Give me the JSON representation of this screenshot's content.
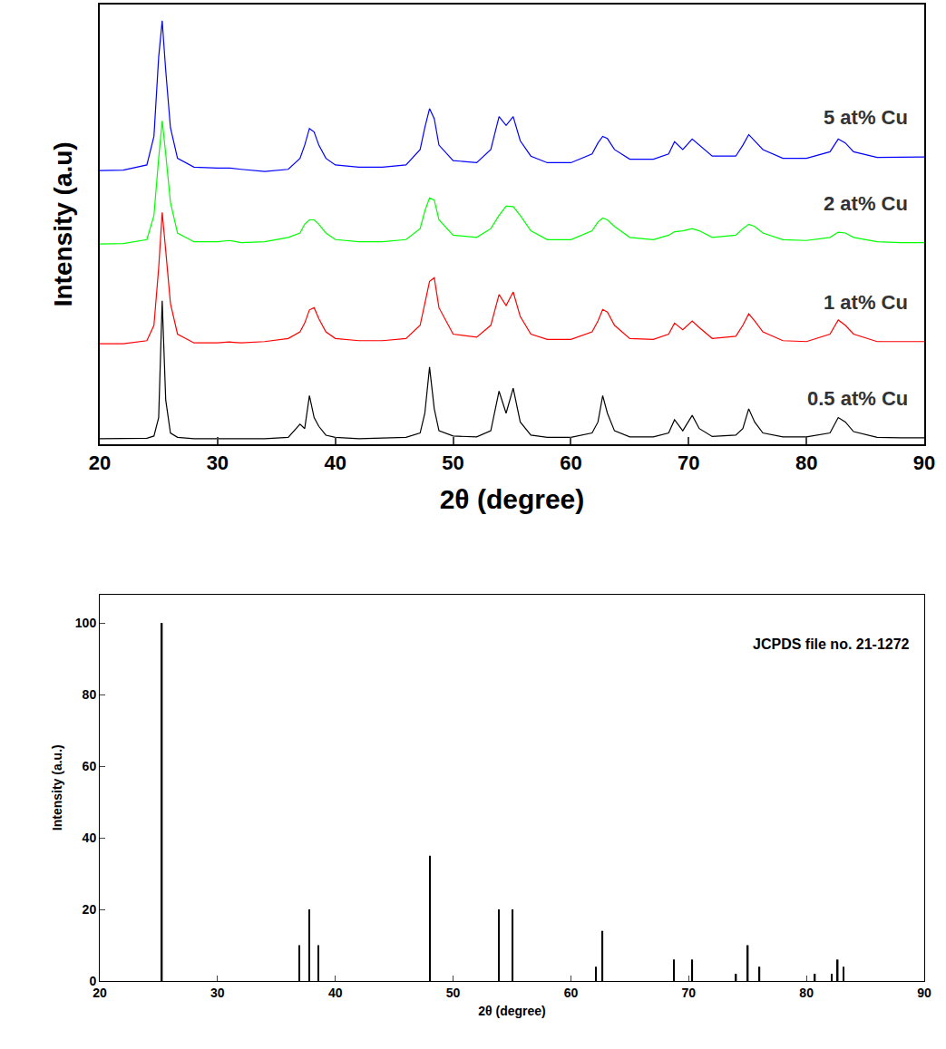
{
  "chart_data": [
    {
      "type": "line",
      "x_label": "2θ (degree)",
      "y_label": "Intensity (a.u)",
      "x": [
        20,
        22,
        24,
        24.6,
        25.0,
        25.3,
        25.6,
        26.0,
        26.6,
        28,
        30,
        31,
        32,
        34,
        36,
        37.0,
        37.4,
        37.8,
        38.2,
        38.6,
        39.2,
        40,
        42,
        44,
        46,
        47.2,
        47.6,
        48.0,
        48.4,
        48.8,
        50,
        52,
        53.2,
        53.9,
        54.5,
        55.1,
        55.7,
        56.6,
        58,
        60,
        61.8,
        62.3,
        62.7,
        63.1,
        63.7,
        65,
        67,
        68.3,
        68.8,
        69.5,
        70.3,
        70.9,
        72,
        74,
        74.6,
        75.1,
        75.6,
        76.3,
        78,
        80,
        82.0,
        82.7,
        83.3,
        84,
        86,
        88,
        90
      ],
      "series": [
        {
          "name": "0.5 at% Cu",
          "color": "#000000",
          "values": [
            1.2,
            1.2,
            1.3,
            1.8,
            6,
            32.6,
            10,
            2.5,
            1.5,
            1.2,
            1.2,
            1.3,
            1.2,
            1.2,
            1.5,
            4.5,
            3.5,
            11,
            6,
            4,
            2,
            1.5,
            1.2,
            1.3,
            1.5,
            2.5,
            7,
            17.5,
            8,
            3,
            1.8,
            1.6,
            3,
            12,
            7,
            12.7,
            5,
            2,
            1.5,
            1.5,
            2.5,
            5,
            11,
            7,
            3,
            1.6,
            1.6,
            2.5,
            5.5,
            3,
            6.5,
            3.5,
            1.7,
            2,
            3.5,
            8,
            5,
            2.5,
            1.6,
            1.6,
            2.5,
            6,
            5,
            2.8,
            1.5,
            1.4,
            1.4
          ]
        },
        {
          "name": "1 at% Cu",
          "color": "#ff0000",
          "values": [
            22.8,
            22.8,
            23.5,
            27,
            40,
            52.7,
            44,
            32,
            25,
            23,
            23,
            23.2,
            23,
            23.3,
            24,
            25.5,
            27.5,
            30.5,
            31,
            28.5,
            25.5,
            24,
            23.5,
            23.5,
            24,
            27,
            32,
            37,
            37.8,
            31,
            25,
            24.3,
            27,
            34,
            31.5,
            34.6,
            29,
            25,
            23.8,
            23.8,
            25.5,
            28,
            30.6,
            30,
            27,
            24,
            23.8,
            25,
            27.5,
            26,
            28,
            26.5,
            24,
            24.5,
            27,
            29.6,
            28,
            25.5,
            23.5,
            23.3,
            25,
            28.2,
            27,
            25,
            23.3,
            23.3,
            23.3
          ]
        },
        {
          "name": "2 at% Cu",
          "color": "#00ff00",
          "values": [
            45.5,
            45.6,
            46.5,
            52,
            65,
            73.5,
            66,
            55,
            48,
            46,
            46,
            46.3,
            45.8,
            46,
            47,
            48,
            50,
            51,
            51,
            50,
            48,
            46.5,
            46,
            46,
            46.5,
            49,
            53,
            56,
            55.5,
            51,
            47.5,
            47,
            49,
            52,
            54.1,
            54,
            52,
            48.5,
            46.5,
            46.5,
            48.5,
            50.5,
            51.4,
            51,
            49.5,
            47,
            46.5,
            47.5,
            48.3,
            48.5,
            49,
            48.5,
            47,
            47.5,
            49,
            50,
            49.5,
            48,
            46.5,
            46.3,
            47,
            48.2,
            48,
            47,
            46,
            45.8,
            45.8
          ]
        },
        {
          "name": "5 at% Cu",
          "color": "#0000ff",
          "values": [
            62.2,
            62.3,
            63.5,
            70,
            88,
            96.3,
            85,
            72,
            65,
            63,
            62.8,
            62.8,
            62.5,
            62,
            62.5,
            65,
            68,
            71.8,
            71,
            68,
            65,
            63.5,
            63,
            63,
            63.5,
            67,
            72,
            76.3,
            74,
            68,
            64.5,
            64,
            67,
            74.5,
            72.5,
            74.5,
            69,
            65.5,
            64,
            64,
            66,
            68.5,
            70,
            69.5,
            67,
            64.8,
            64.8,
            66,
            68.8,
            67,
            69.4,
            68,
            65.5,
            65.5,
            68,
            70.4,
            69,
            67,
            65,
            65,
            66.5,
            69.4,
            68.5,
            66.5,
            65.2,
            65.3,
            65.3
          ]
        }
      ],
      "xlim": [
        20,
        90
      ],
      "xticks": [
        20,
        30,
        40,
        50,
        60,
        70,
        80,
        90
      ],
      "ylim": [
        0,
        100
      ],
      "tick_labels": "x"
    },
    {
      "type": "bar",
      "annotations": [
        "JCPDS file no. 21-1272"
      ],
      "x_label": "2θ (degree)",
      "y_label": "Intensity (a.u.)",
      "x": [
        25.281,
        36.946,
        37.8,
        38.575,
        48.049,
        53.89,
        55.06,
        62.119,
        62.688,
        68.76,
        70.309,
        74.029,
        75.029,
        76.017,
        80.725,
        82.136,
        82.659,
        83.147
      ],
      "values": [
        100,
        10,
        20,
        10,
        35,
        20,
        20,
        4,
        14,
        6,
        6,
        2,
        10,
        4,
        2,
        2,
        6,
        4
      ],
      "color": "#000000",
      "xlim": [
        20,
        90
      ],
      "xticks": [
        20,
        30,
        40,
        50,
        60,
        70,
        80,
        90
      ],
      "ylim": [
        0,
        108
      ],
      "yticks": [
        0,
        20,
        40,
        60,
        80,
        100
      ]
    }
  ]
}
